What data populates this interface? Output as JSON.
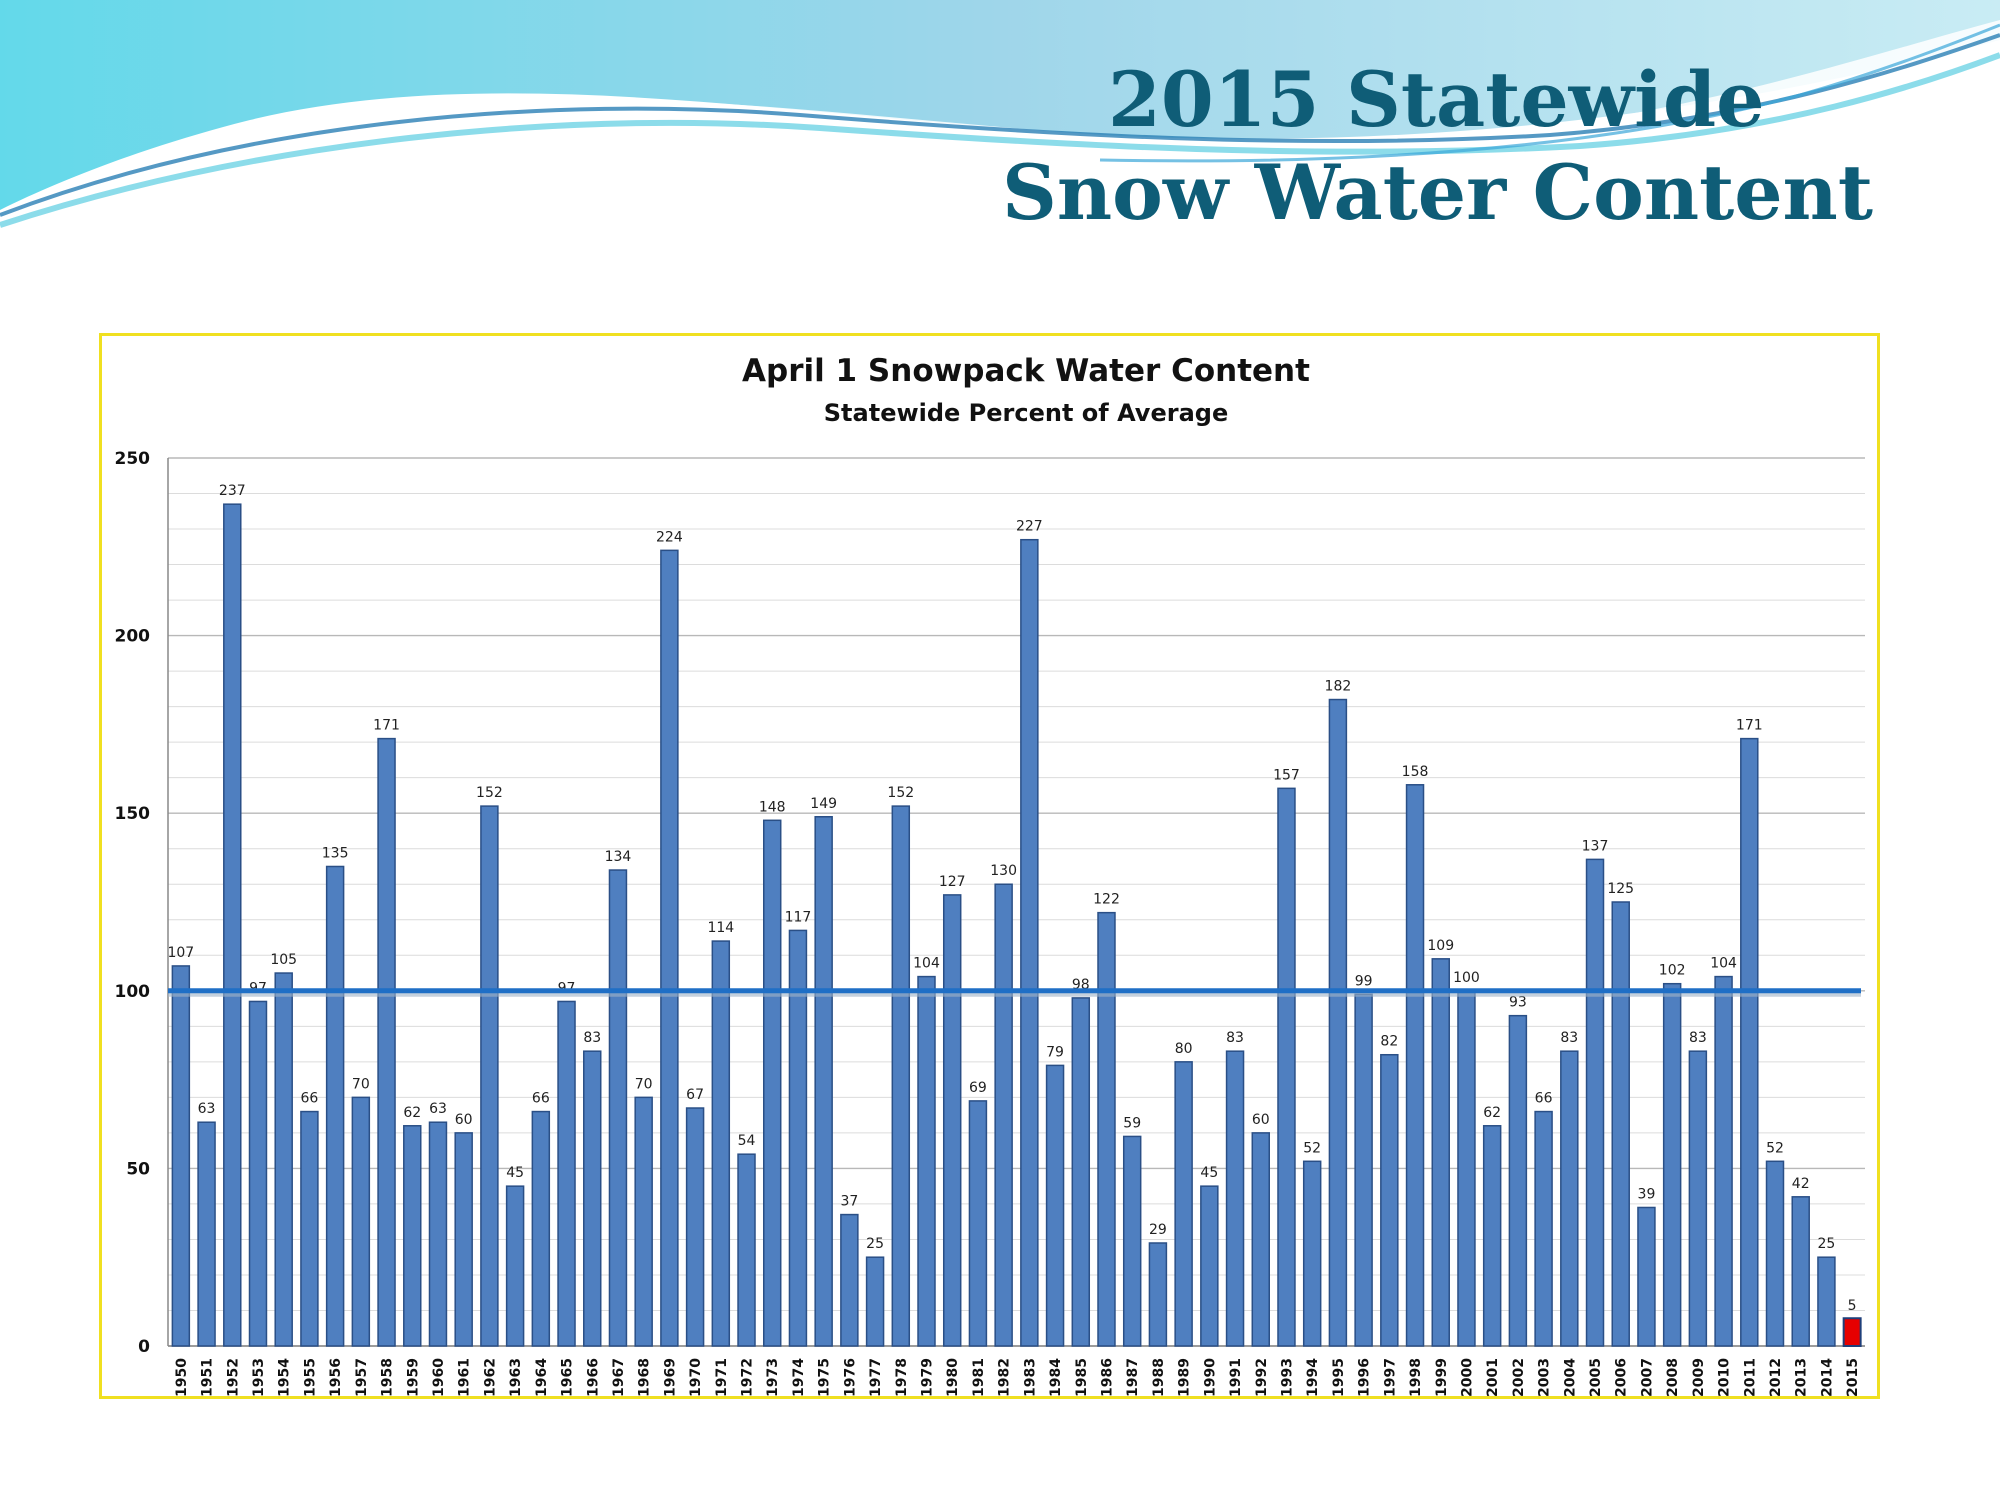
{
  "slide": {
    "title_line1": "2015 Statewide",
    "title_line2": "Snow Water Content",
    "colors": {
      "title": "#0f5d77",
      "wave_light": "#7fd8e8",
      "wave_dark": "#2b7fb5"
    }
  },
  "chart_data": {
    "type": "bar",
    "title": "April 1 Snowpack Water Content",
    "subtitle": "Statewide Percent of Average",
    "xlabel": "",
    "ylabel": "",
    "ylim": [
      0,
      250
    ],
    "yticks": [
      0,
      50,
      100,
      150,
      200,
      250
    ],
    "grid": true,
    "reference_line": {
      "value": 100,
      "color": "#1f6fc6"
    },
    "bar_color": "#4f7fc0",
    "highlight": {
      "category": "2015",
      "color": "#e60000"
    },
    "categories": [
      "1950",
      "1951",
      "1952",
      "1953",
      "1954",
      "1955",
      "1956",
      "1957",
      "1958",
      "1959",
      "1960",
      "1961",
      "1962",
      "1963",
      "1964",
      "1965",
      "1966",
      "1967",
      "1968",
      "1969",
      "1970",
      "1971",
      "1972",
      "1973",
      "1974",
      "1975",
      "1976",
      "1977",
      "1978",
      "1979",
      "1980",
      "1981",
      "1982",
      "1983",
      "1984",
      "1985",
      "1986",
      "1987",
      "1988",
      "1989",
      "1990",
      "1991",
      "1992",
      "1993",
      "1994",
      "1995",
      "1996",
      "1997",
      "1998",
      "1999",
      "2000",
      "2001",
      "2002",
      "2003",
      "2004",
      "2005",
      "2006",
      "2007",
      "2008",
      "2009",
      "2010",
      "2011",
      "2012",
      "2013",
      "2014",
      "2015"
    ],
    "values": [
      107,
      63,
      237,
      97,
      105,
      66,
      135,
      70,
      171,
      62,
      63,
      60,
      152,
      45,
      66,
      97,
      83,
      134,
      70,
      224,
      67,
      114,
      54,
      148,
      117,
      149,
      37,
      25,
      152,
      104,
      127,
      69,
      130,
      227,
      79,
      98,
      122,
      59,
      29,
      80,
      45,
      83,
      60,
      157,
      52,
      182,
      99,
      82,
      158,
      109,
      100,
      62,
      93,
      66,
      83,
      137,
      125,
      39,
      102,
      83,
      104,
      171,
      52,
      42,
      25,
      5
    ]
  }
}
